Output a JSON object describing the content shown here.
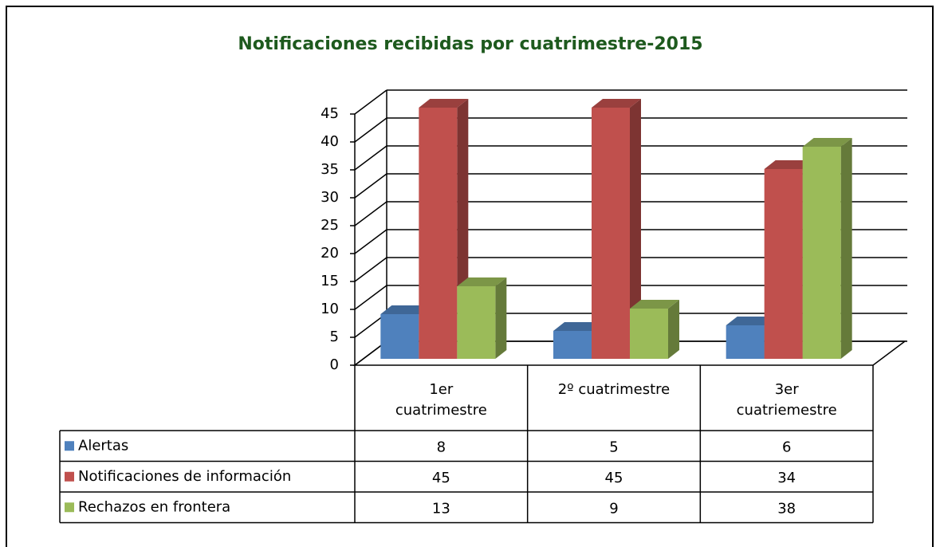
{
  "chart_data": {
    "type": "bar3d",
    "title": "Notificaciones  recibidas por cuatrimestre-2015",
    "categories": [
      "1er\ncuatrimestre",
      "2º cuatrimestre",
      "3er\ncuatriemestre"
    ],
    "series": [
      {
        "name": "Alertas",
        "color": "#4f81bd",
        "values": [
          8,
          5,
          6
        ]
      },
      {
        "name": "Notificaciones de información",
        "color": "#c0504d",
        "values": [
          45,
          45,
          34
        ]
      },
      {
        "name": "Rechazos en frontera",
        "color": "#9bbb59",
        "values": [
          13,
          9,
          38
        ]
      }
    ],
    "ylim": [
      0,
      45
    ],
    "yticks": [
      0,
      5,
      10,
      15,
      20,
      25,
      30,
      35,
      40,
      45
    ],
    "grid": true,
    "data_table": true
  }
}
